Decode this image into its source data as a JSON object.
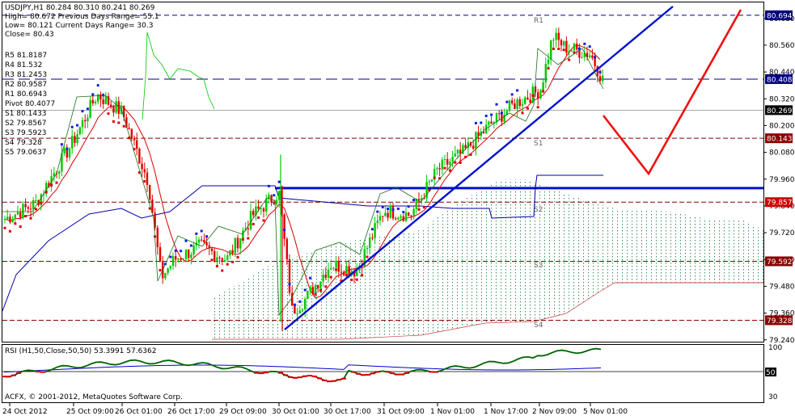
{
  "colors": {
    "bull": "#00c800",
    "bear": "#e00000",
    "trend": "#0010cc",
    "forecast": "#ee1111",
    "ichimoku_tenkan": "#dd0000",
    "ichimoku_kijun": "#0000aa",
    "kumo": "#2e8b57",
    "pivot_res": "#000080",
    "pivot_sup": "#8b0000",
    "rsi_main": "#006400",
    "rsi_signal": "#0000cc",
    "rsi_low": "#dd0000"
  },
  "header": {
    "symbol_line": "USDJPY,H1  80.284 80.310 80.241 80.269",
    "high_line": "High= 80.672    Previous Days Range= 55.1",
    "low_line": "Low= 80.121    Current Days Range= 30.3",
    "close_line": "Close= 80.43"
  },
  "pivots": {
    "r5": "R5 81.8187",
    "r4": "R4 81.532",
    "r3": "R3 81.2453",
    "r2": "R2 80.9587",
    "r1": "R1 80.6943",
    "pivot": "Pivot 80.4077",
    "s1": "S1 80.1433",
    "s2": "S2 79.8567",
    "s3": "S3 79.5923",
    "s4": "S4 79.328",
    "s5": "S5 79.0637"
  },
  "chart_labels": {
    "r1": "R1",
    "s1": "S1",
    "s2": "S2",
    "s3": "S3",
    "s4": "S4"
  },
  "price_tags": {
    "r1": "80.694",
    "pivot": "80.408",
    "current": "80.269",
    "s1": "80.143",
    "s2": "79.857",
    "s3": "79.592",
    "s4": "79.328"
  },
  "rsi": {
    "title": "RSI (H1,50,Close,50,50) 53.3991 57.6362",
    "level_tag": "50",
    "axis_top": "100",
    "axis_bottom": "30"
  },
  "copyright": "ACFX, © 2001-2012, MetaQuotes Software Corp.",
  "chart_data": {
    "type": "candlestick",
    "symbol": "USDJPY",
    "timeframe": "H1",
    "price_axis": {
      "ylim": [
        79.2,
        80.76
      ],
      "ticks": [
        "80.680",
        "80.560",
        "80.440",
        "80.320",
        "80.200",
        "80.080",
        "79.960",
        "79.840",
        "79.720",
        "79.600",
        "79.480",
        "79.360",
        "79.240"
      ]
    },
    "time_axis": {
      "ticks": [
        "24 Oct 2012",
        "25 Oct 09:00",
        "26 Oct 01:00",
        "26 Oct 17:00",
        "29 Oct 09:00",
        "30 Oct 01:00",
        "30 Oct 17:00",
        "31 Oct 09:00",
        "1 Nov 01:00",
        "1 Nov 17:00",
        "2 Nov 09:00",
        "5 Nov 01:00"
      ]
    },
    "levels": [
      {
        "name": "R1",
        "value": 80.694
      },
      {
        "name": "Pivot",
        "value": 80.408
      },
      {
        "name": "S1",
        "value": 80.143
      },
      {
        "name": "S2",
        "value": 79.857
      },
      {
        "name": "S3",
        "value": 79.592
      },
      {
        "name": "S4",
        "value": 79.328
      },
      {
        "name": "Horizontal support",
        "value": 79.92
      }
    ],
    "price_path": [
      {
        "x": "24 Oct 2012",
        "y": 79.78
      },
      {
        "x": "24 Oct 17:00",
        "y": 79.85
      },
      {
        "x": "25 Oct 09:00",
        "y": 80.12
      },
      {
        "x": "25 Oct 17:00",
        "y": 80.34
      },
      {
        "x": "26 Oct 01:00",
        "y": 80.26
      },
      {
        "x": "26 Oct 09:00",
        "y": 79.95
      },
      {
        "x": "26 Oct 13:00",
        "y": 79.52
      },
      {
        "x": "26 Oct 17:00",
        "y": 79.6
      },
      {
        "x": "29 Oct 01:00",
        "y": 79.66
      },
      {
        "x": "29 Oct 09:00",
        "y": 79.6
      },
      {
        "x": "29 Oct 17:00",
        "y": 79.8
      },
      {
        "x": "30 Oct 01:00",
        "y": 79.9
      },
      {
        "x": "30 Oct 05:00",
        "y": 79.37
      },
      {
        "x": "30 Oct 09:00",
        "y": 79.42
      },
      {
        "x": "30 Oct 17:00",
        "y": 79.58
      },
      {
        "x": "31 Oct 01:00",
        "y": 79.55
      },
      {
        "x": "31 Oct 09:00",
        "y": 79.82
      },
      {
        "x": "31 Oct 17:00",
        "y": 79.8
      },
      {
        "x": "1 Nov 01:00",
        "y": 80.0
      },
      {
        "x": "1 Nov 09:00",
        "y": 80.08
      },
      {
        "x": "1 Nov 17:00",
        "y": 80.2
      },
      {
        "x": "2 Nov 01:00",
        "y": 80.3
      },
      {
        "x": "2 Nov 09:00",
        "y": 80.36
      },
      {
        "x": "2 Nov 13:00",
        "y": 80.6
      },
      {
        "x": "2 Nov 17:00",
        "y": 80.55
      },
      {
        "x": "5 Nov 01:00",
        "y": 80.52
      },
      {
        "x": "5 Nov 05:00",
        "y": 80.4
      },
      {
        "x": "5 Nov 09:00",
        "y": 80.27
      }
    ],
    "trendlines": [
      {
        "name": "Uptrend line",
        "from": {
          "x": "30 Oct 09:00",
          "y": 79.3
        },
        "to": {
          "x": "5 Nov 17:00",
          "y": 80.74
        }
      }
    ],
    "forecast_path": [
      {
        "x": "5 Nov 09:00",
        "y": 80.26
      },
      {
        "x": "5 Nov 17:00",
        "y": 79.98
      },
      {
        "x": "6 Nov 01:00",
        "y": 80.71
      }
    ],
    "rsi": {
      "period": 50,
      "level": 50,
      "values": [
        53.3991,
        57.6362
      ]
    }
  }
}
